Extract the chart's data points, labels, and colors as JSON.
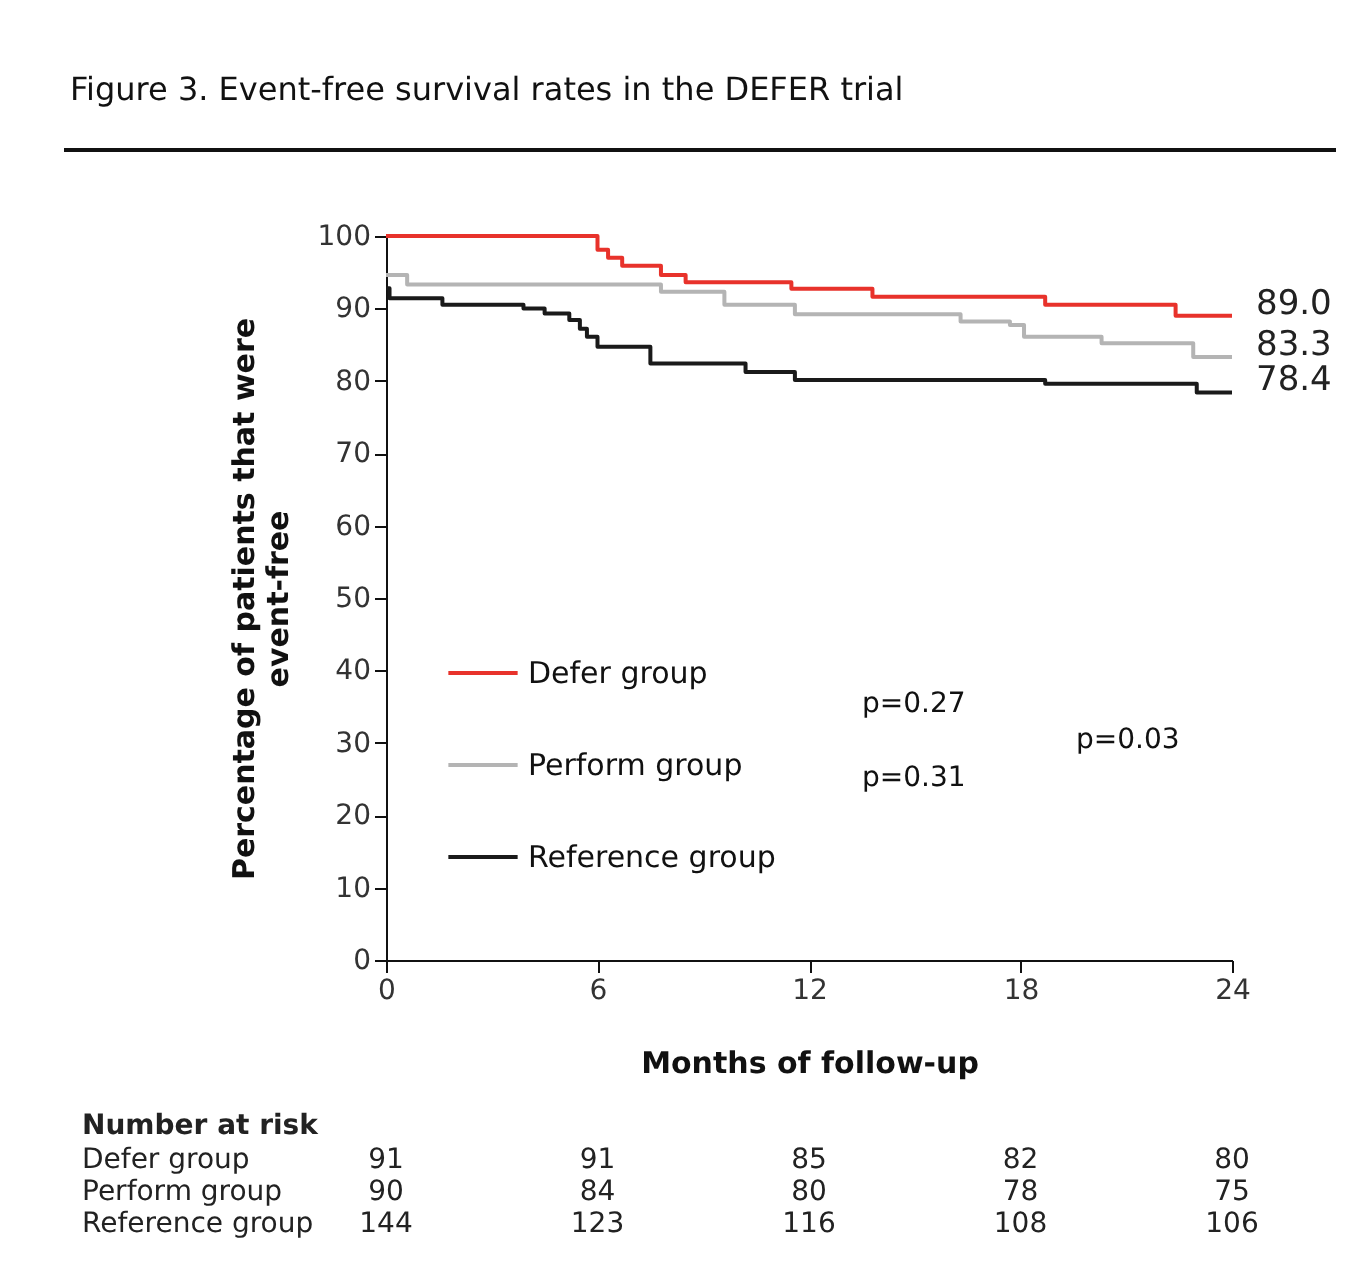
{
  "chart_data": {
    "type": "step",
    "title": "Figure 3.  Event-free survival rates in the DEFER trial",
    "xlabel": "Months of follow-up",
    "ylabel": "Percentage of patients that were\nevent-free",
    "xlim": [
      0,
      24
    ],
    "xticks": [
      0,
      6,
      12,
      18,
      24
    ],
    "ylim": [
      0,
      100
    ],
    "yticks": [
      0,
      10,
      20,
      30,
      40,
      50,
      60,
      70,
      80,
      90,
      100
    ],
    "grid": false,
    "legend": "bottom left",
    "marker": "none",
    "line_style": "solid",
    "series": [
      {
        "name": "Defer group",
        "color": "#e8322b",
        "x": [
          0,
          6.0,
          6.3,
          6.7,
          7.8,
          8.5,
          11.5,
          13.8,
          18.7,
          22.4,
          24
        ],
        "values": [
          100,
          98.1,
          97.0,
          95.9,
          94.6,
          93.6,
          92.7,
          91.6,
          90.5,
          89.0,
          89.0
        ],
        "value_labels": [
          null,
          null,
          null,
          null,
          null,
          null,
          null,
          null,
          null,
          null,
          "89.0"
        ]
      },
      {
        "name": "Perform group",
        "color": "#b4b4b4",
        "x": [
          0,
          0.6,
          7.8,
          9.6,
          11.6,
          16.3,
          17.7,
          18.1,
          20.3,
          22.9,
          24
        ],
        "values": [
          94.6,
          93.3,
          92.3,
          90.5,
          89.2,
          88.2,
          87.7,
          86.1,
          85.2,
          83.3,
          83.3
        ],
        "value_labels": [
          null,
          null,
          null,
          null,
          null,
          null,
          null,
          null,
          null,
          null,
          "83.3"
        ]
      },
      {
        "name": "Reference group",
        "color": "#1a1a1a",
        "x": [
          0,
          0.1,
          1.6,
          3.9,
          4.5,
          5.2,
          5.5,
          5.7,
          6.0,
          7.5,
          10.2,
          11.6,
          18.7,
          23.0,
          24
        ],
        "values": [
          92.8,
          91.4,
          90.5,
          90.0,
          89.3,
          88.4,
          87.2,
          86.1,
          84.7,
          82.4,
          81.2,
          80.1,
          79.6,
          78.4,
          78.4
        ],
        "value_labels": [
          null,
          null,
          null,
          null,
          null,
          null,
          null,
          null,
          null,
          null,
          null,
          null,
          null,
          null,
          "78.4"
        ]
      }
    ],
    "annotations": [
      "p=0.27",
      "p=0.31",
      "p=0.03",
      "Number at risk",
      "Defer group",
      "91",
      "91",
      "85",
      "82",
      "80",
      "Perform group",
      "90",
      "84",
      "80",
      "78",
      "75",
      "Reference group",
      "144",
      "123",
      "116",
      "108",
      "106"
    ]
  }
}
